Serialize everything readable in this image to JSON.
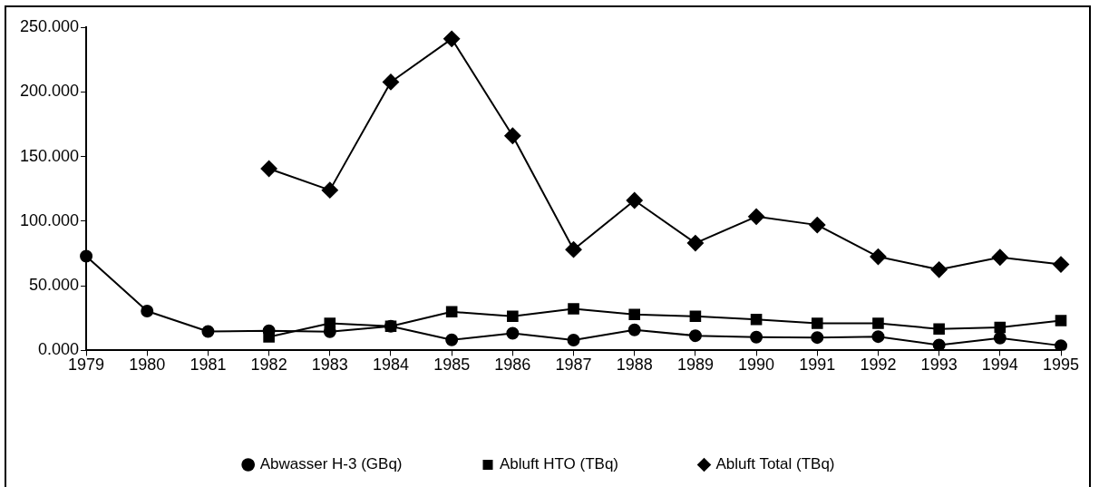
{
  "chart_data": {
    "type": "line",
    "categories": [
      "1979",
      "1980",
      "1981",
      "1982",
      "1983",
      "1984",
      "1985",
      "1986",
      "1987",
      "1988",
      "1989",
      "1990",
      "1991",
      "1992",
      "1993",
      "1994",
      "1995"
    ],
    "series": [
      {
        "name": "Abwasser H-3 (GBq)",
        "color": "#000000",
        "marker": "circle",
        "values": [
          72.9,
          30.4,
          14.7,
          15.2,
          14.5,
          18.7,
          8.2,
          13.3,
          8,
          15.9,
          11.4,
          10.3,
          10,
          10.7,
          4.2,
          9.6,
          3.7
        ]
      },
      {
        "name": "Abluft HTO (TBq)",
        "color": "#000000",
        "marker": "square",
        "values": [
          null,
          null,
          null,
          10.5,
          21,
          18.7,
          29.9,
          26.4,
          32.2,
          27.8,
          26.4,
          24,
          21,
          21,
          16.6,
          17.8,
          23.1
        ]
      },
      {
        "name": "Abluft Total (TBq)",
        "color": "#000000",
        "marker": "diamond",
        "values": [
          null,
          null,
          null,
          140.6,
          124,
          207.6,
          241,
          166,
          78,
          116,
          83,
          103.5,
          97,
          72.5,
          62.5,
          72,
          66.5
        ]
      }
    ],
    "ylim": [
      0,
      250
    ],
    "yticks": [
      {
        "value": 0,
        "label": "0.000"
      },
      {
        "value": 50,
        "label": "50.000"
      },
      {
        "value": 100,
        "label": "100.000"
      },
      {
        "value": 150,
        "label": "150.000"
      },
      {
        "value": 200,
        "label": "200.000"
      },
      {
        "value": 250,
        "label": "250.000"
      }
    ],
    "grid": false,
    "legend": "bottom",
    "line_style": "solid"
  }
}
